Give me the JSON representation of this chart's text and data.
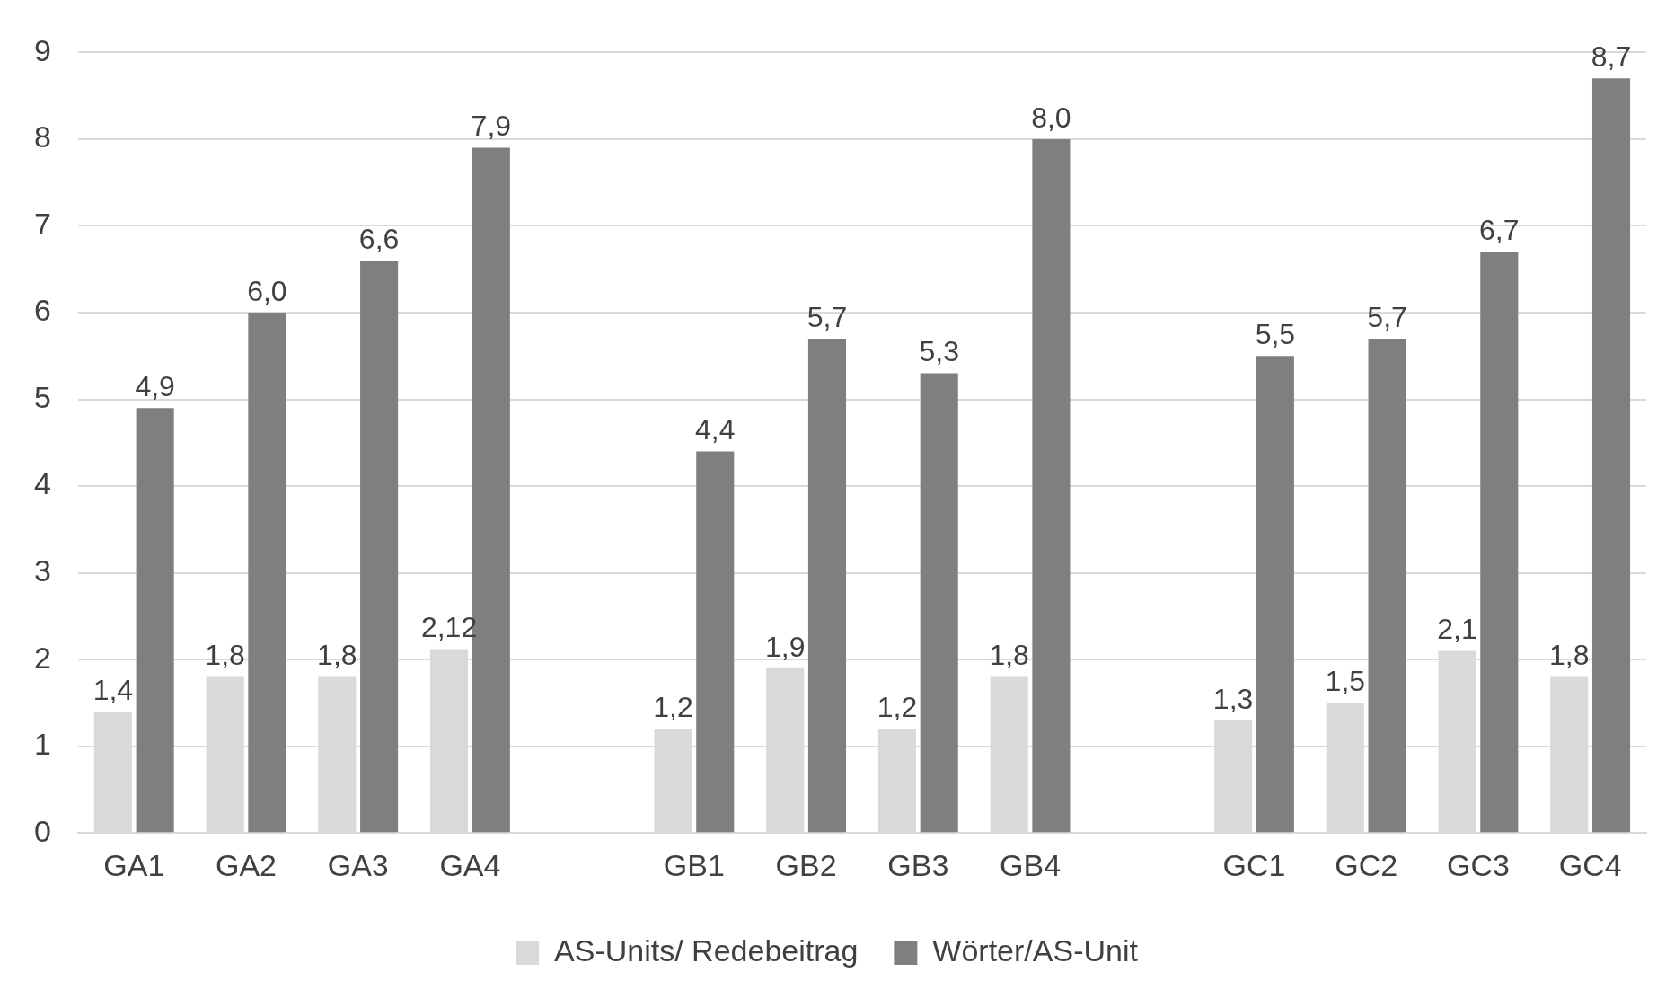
{
  "chart_data": {
    "type": "bar",
    "categories": [
      "GA1",
      "GA2",
      "GA3",
      "GA4",
      null,
      "GB1",
      "GB2",
      "GB3",
      "GB4",
      null,
      "GC1",
      "GC2",
      "GC3",
      "GC4"
    ],
    "series": [
      {
        "name": "AS-Units/ Redebeitrag",
        "color": "#d9d9d9",
        "values": [
          1.4,
          1.8,
          1.8,
          2.12,
          null,
          1.2,
          1.9,
          1.2,
          1.8,
          null,
          1.3,
          1.5,
          2.1,
          1.8
        ],
        "value_labels": [
          "1,4",
          "1,8",
          "1,8",
          "2,12",
          null,
          "1,2",
          "1,9",
          "1,2",
          "1,8",
          null,
          "1,3",
          "1,5",
          "2,1",
          "1,8"
        ]
      },
      {
        "name": "Wörter/AS-Unit",
        "color": "#7f7f7f",
        "values": [
          4.9,
          6.0,
          6.6,
          7.9,
          null,
          4.4,
          5.7,
          5.3,
          8.0,
          null,
          5.5,
          5.7,
          6.7,
          8.7
        ],
        "value_labels": [
          "4,9",
          "6,0",
          "6,6",
          "7,9",
          null,
          "4,4",
          "5,7",
          "5,3",
          "8,0",
          null,
          "5,5",
          "5,7",
          "6,7",
          "8,7"
        ]
      }
    ],
    "ylim": [
      0,
      9
    ],
    "yticks": [
      0,
      1,
      2,
      3,
      4,
      5,
      6,
      7,
      8,
      9
    ],
    "grid": "y",
    "legend": "bottom"
  }
}
